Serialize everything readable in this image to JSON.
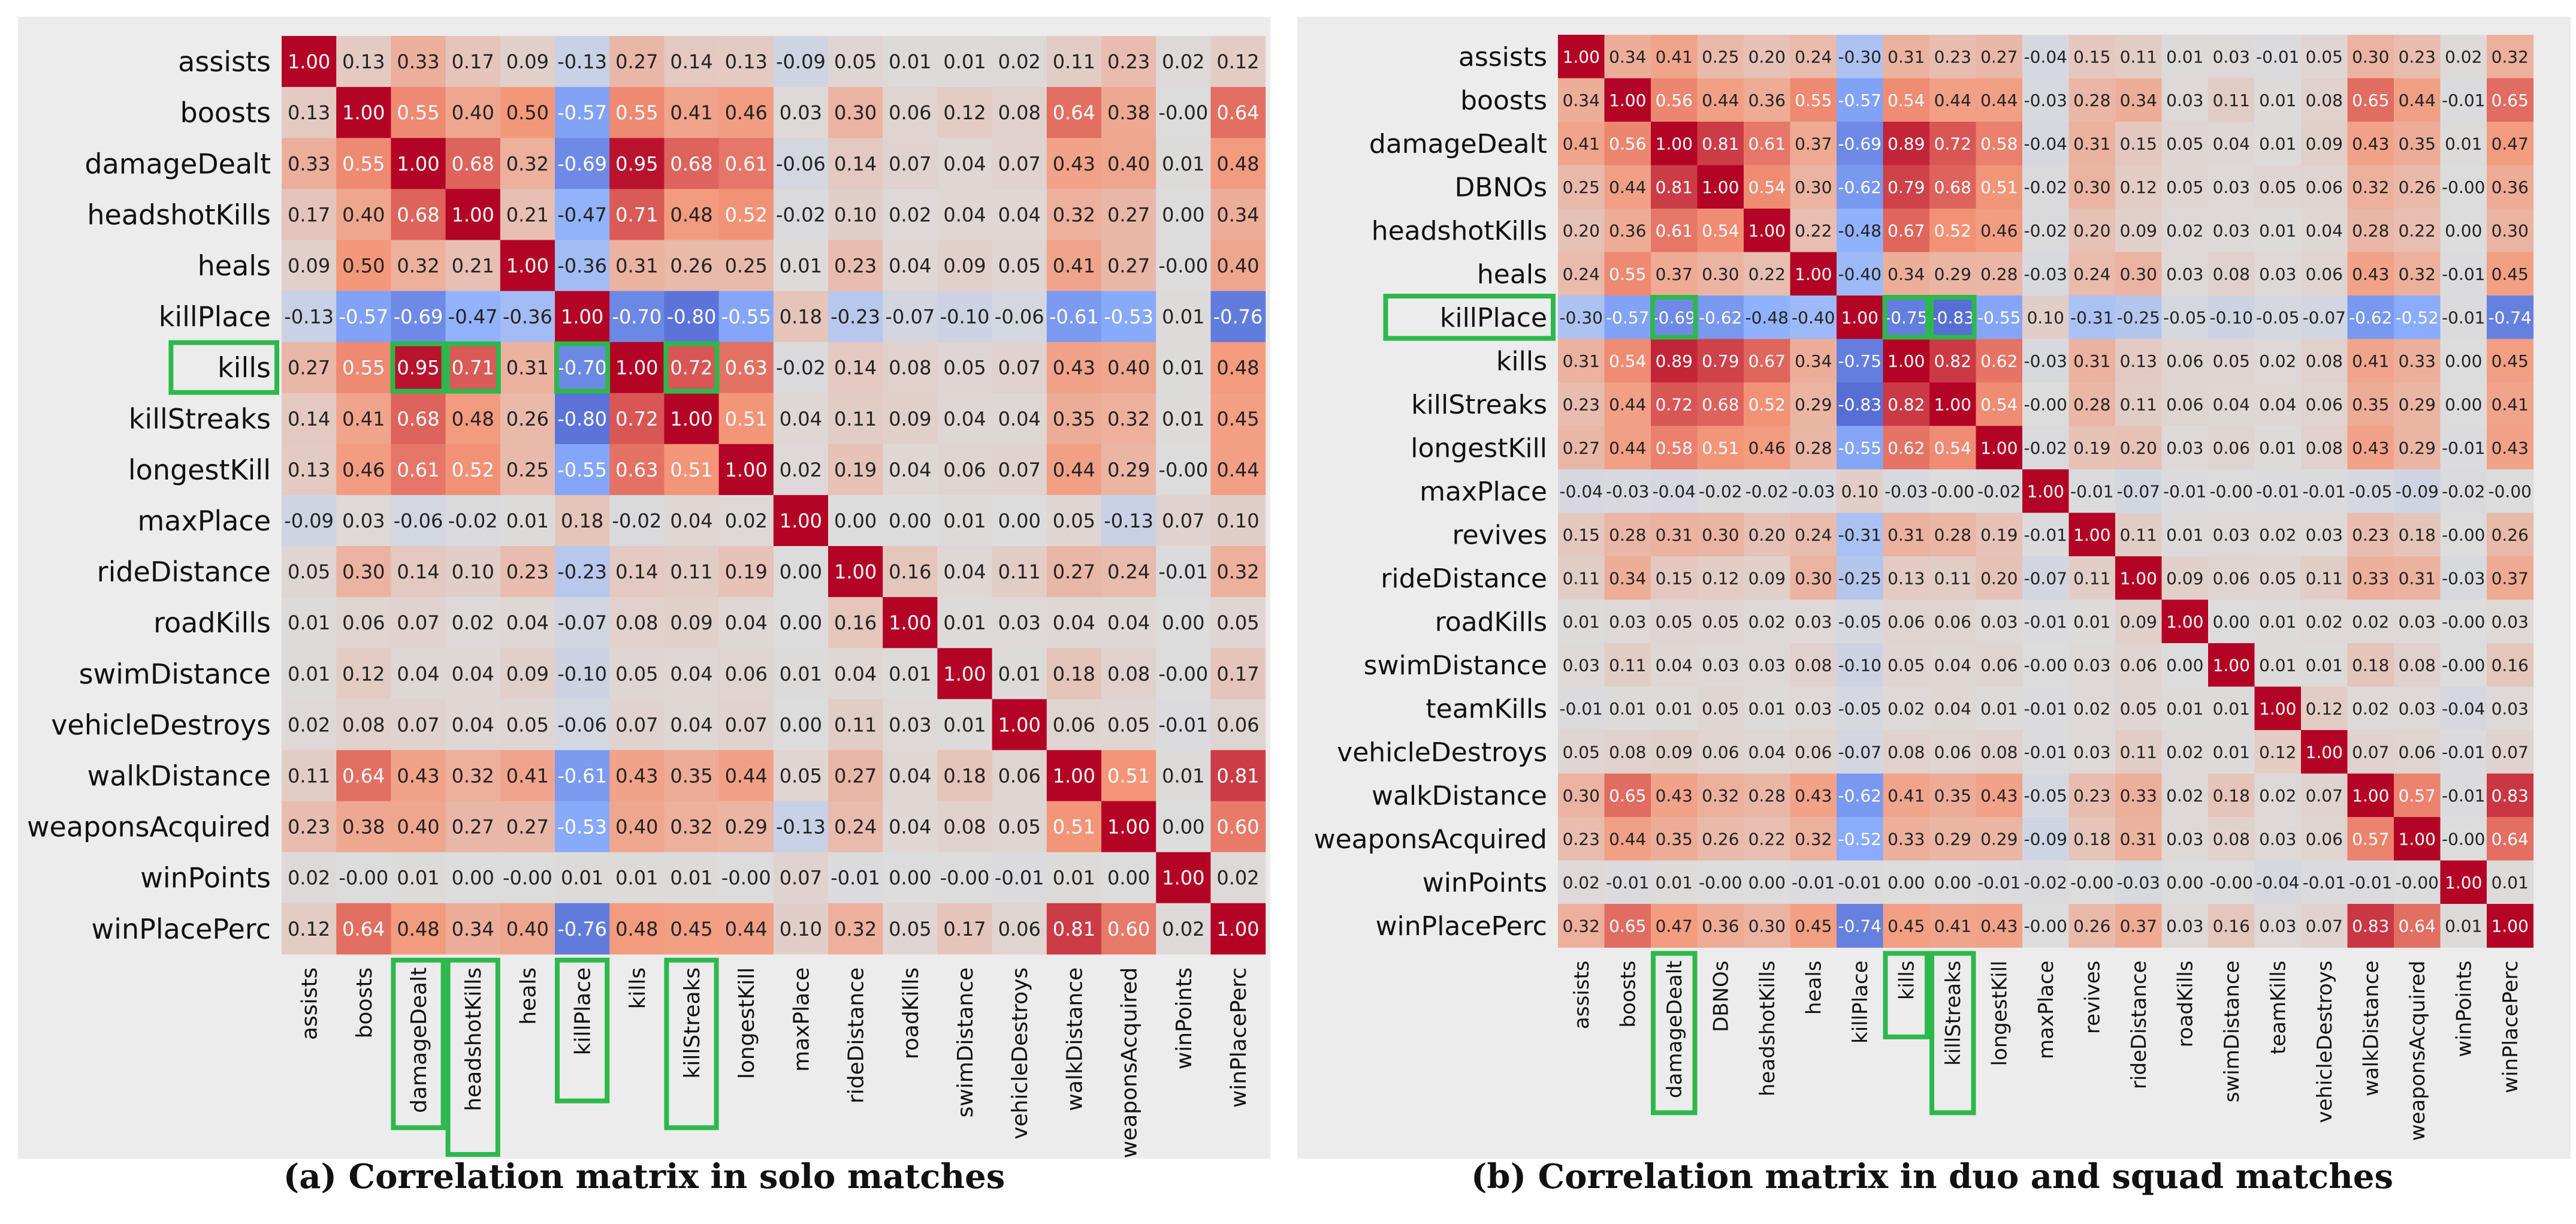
{
  "highlight_color": "#2db84c",
  "colormap": "coolwarm",
  "figure": {
    "caption_a": "(a) Correlation matrix in solo matches",
    "caption_b": "(b) Correlation matrix in duo and squad matches"
  },
  "chart_data": [
    {
      "type": "heatmap",
      "title": "",
      "caption": "(a) Correlation matrix in solo matches",
      "value_range": [
        -1,
        1
      ],
      "rows": [
        "assists",
        "boosts",
        "damageDealt",
        "headshotKills",
        "heals",
        "killPlace",
        "kills",
        "killStreaks",
        "longestKill",
        "maxPlace",
        "rideDistance",
        "roadKills",
        "swimDistance",
        "vehicleDestroys",
        "walkDistance",
        "weaponsAcquired",
        "winPoints",
        "winPlacePerc"
      ],
      "columns": [
        "assists",
        "boosts",
        "damageDealt",
        "headshotKills",
        "heals",
        "killPlace",
        "kills",
        "killStreaks",
        "longestKill",
        "maxPlace",
        "rideDistance",
        "roadKills",
        "swimDistance",
        "vehicleDestroys",
        "walkDistance",
        "weaponsAcquired",
        "winPoints",
        "winPlacePerc"
      ],
      "values": [
        [
          "1.00",
          "0.13",
          "0.33",
          "0.17",
          "0.09",
          "-0.13",
          "0.27",
          "0.14",
          "0.13",
          "-0.09",
          "0.05",
          "0.01",
          "0.01",
          "0.02",
          "0.11",
          "0.23",
          "0.02",
          "0.12"
        ],
        [
          "0.13",
          "1.00",
          "0.55",
          "0.40",
          "0.50",
          "-0.57",
          "0.55",
          "0.41",
          "0.46",
          "0.03",
          "0.30",
          "0.06",
          "0.12",
          "0.08",
          "0.64",
          "0.38",
          "-0.00",
          "0.64"
        ],
        [
          "0.33",
          "0.55",
          "1.00",
          "0.68",
          "0.32",
          "-0.69",
          "0.95",
          "0.68",
          "0.61",
          "-0.06",
          "0.14",
          "0.07",
          "0.04",
          "0.07",
          "0.43",
          "0.40",
          "0.01",
          "0.48"
        ],
        [
          "0.17",
          "0.40",
          "0.68",
          "1.00",
          "0.21",
          "-0.47",
          "0.71",
          "0.48",
          "0.52",
          "-0.02",
          "0.10",
          "0.02",
          "0.04",
          "0.04",
          "0.32",
          "0.27",
          "0.00",
          "0.34"
        ],
        [
          "0.09",
          "0.50",
          "0.32",
          "0.21",
          "1.00",
          "-0.36",
          "0.31",
          "0.26",
          "0.25",
          "0.01",
          "0.23",
          "0.04",
          "0.09",
          "0.05",
          "0.41",
          "0.27",
          "-0.00",
          "0.40"
        ],
        [
          "-0.13",
          "-0.57",
          "-0.69",
          "-0.47",
          "-0.36",
          "1.00",
          "-0.70",
          "-0.80",
          "-0.55",
          "0.18",
          "-0.23",
          "-0.07",
          "-0.10",
          "-0.06",
          "-0.61",
          "-0.53",
          "0.01",
          "-0.76"
        ],
        [
          "0.27",
          "0.55",
          "0.95",
          "0.71",
          "0.31",
          "-0.70",
          "1.00",
          "0.72",
          "0.63",
          "-0.02",
          "0.14",
          "0.08",
          "0.05",
          "0.07",
          "0.43",
          "0.40",
          "0.01",
          "0.48"
        ],
        [
          "0.14",
          "0.41",
          "0.68",
          "0.48",
          "0.26",
          "-0.80",
          "0.72",
          "1.00",
          "0.51",
          "0.04",
          "0.11",
          "0.09",
          "0.04",
          "0.04",
          "0.35",
          "0.32",
          "0.01",
          "0.45"
        ],
        [
          "0.13",
          "0.46",
          "0.61",
          "0.52",
          "0.25",
          "-0.55",
          "0.63",
          "0.51",
          "1.00",
          "0.02",
          "0.19",
          "0.04",
          "0.06",
          "0.07",
          "0.44",
          "0.29",
          "-0.00",
          "0.44"
        ],
        [
          "-0.09",
          "0.03",
          "-0.06",
          "-0.02",
          "0.01",
          "0.18",
          "-0.02",
          "0.04",
          "0.02",
          "1.00",
          "0.00",
          "0.00",
          "0.01",
          "0.00",
          "0.05",
          "-0.13",
          "0.07",
          "0.10"
        ],
        [
          "0.05",
          "0.30",
          "0.14",
          "0.10",
          "0.23",
          "-0.23",
          "0.14",
          "0.11",
          "0.19",
          "0.00",
          "1.00",
          "0.16",
          "0.04",
          "0.11",
          "0.27",
          "0.24",
          "-0.01",
          "0.32"
        ],
        [
          "0.01",
          "0.06",
          "0.07",
          "0.02",
          "0.04",
          "-0.07",
          "0.08",
          "0.09",
          "0.04",
          "0.00",
          "0.16",
          "1.00",
          "0.01",
          "0.03",
          "0.04",
          "0.04",
          "0.00",
          "0.05"
        ],
        [
          "0.01",
          "0.12",
          "0.04",
          "0.04",
          "0.09",
          "-0.10",
          "0.05",
          "0.04",
          "0.06",
          "0.01",
          "0.04",
          "0.01",
          "1.00",
          "0.01",
          "0.18",
          "0.08",
          "-0.00",
          "0.17"
        ],
        [
          "0.02",
          "0.08",
          "0.07",
          "0.04",
          "0.05",
          "-0.06",
          "0.07",
          "0.04",
          "0.07",
          "0.00",
          "0.11",
          "0.03",
          "0.01",
          "1.00",
          "0.06",
          "0.05",
          "-0.01",
          "0.06"
        ],
        [
          "0.11",
          "0.64",
          "0.43",
          "0.32",
          "0.41",
          "-0.61",
          "0.43",
          "0.35",
          "0.44",
          "0.05",
          "0.27",
          "0.04",
          "0.18",
          "0.06",
          "1.00",
          "0.51",
          "0.01",
          "0.81"
        ],
        [
          "0.23",
          "0.38",
          "0.40",
          "0.27",
          "0.27",
          "-0.53",
          "0.40",
          "0.32",
          "0.29",
          "-0.13",
          "0.24",
          "0.04",
          "0.08",
          "0.05",
          "0.51",
          "1.00",
          "0.00",
          "0.60"
        ],
        [
          "0.02",
          "-0.00",
          "0.01",
          "0.00",
          "-0.00",
          "0.01",
          "0.01",
          "0.01",
          "-0.00",
          "0.07",
          "-0.01",
          "0.00",
          "-0.00",
          "-0.01",
          "0.01",
          "0.00",
          "1.00",
          "0.02"
        ],
        [
          "0.12",
          "0.64",
          "0.48",
          "0.34",
          "0.40",
          "-0.76",
          "0.48",
          "0.45",
          "0.44",
          "0.10",
          "0.32",
          "0.05",
          "0.17",
          "0.06",
          "0.81",
          "0.60",
          "0.02",
          "1.00"
        ]
      ],
      "highlighted_rows": [
        "kills"
      ],
      "highlighted_columns": [
        "damageDealt",
        "headshotKills",
        "killPlace",
        "killStreaks"
      ],
      "highlighted_cells": [
        [
          "kills",
          "damageDealt"
        ],
        [
          "kills",
          "headshotKills"
        ],
        [
          "kills",
          "killPlace"
        ],
        [
          "kills",
          "killStreaks"
        ]
      ]
    },
    {
      "type": "heatmap",
      "title": "",
      "caption": "(b) Correlation matrix in duo and squad matches",
      "value_range": [
        -1,
        1
      ],
      "rows": [
        "assists",
        "boosts",
        "damageDealt",
        "DBNOs",
        "headshotKills",
        "heals",
        "killPlace",
        "kills",
        "killStreaks",
        "longestKill",
        "maxPlace",
        "revives",
        "rideDistance",
        "roadKills",
        "swimDistance",
        "teamKills",
        "vehicleDestroys",
        "walkDistance",
        "weaponsAcquired",
        "winPoints",
        "winPlacePerc"
      ],
      "columns": [
        "assists",
        "boosts",
        "damageDealt",
        "DBNOs",
        "headshotKills",
        "heals",
        "killPlace",
        "kills",
        "killStreaks",
        "longestKill",
        "maxPlace",
        "revives",
        "rideDistance",
        "roadKills",
        "swimDistance",
        "teamKills",
        "vehicleDestroys",
        "walkDistance",
        "weaponsAcquired",
        "winPoints",
        "winPlacePerc"
      ],
      "values": [
        [
          "1.00",
          "0.34",
          "0.41",
          "0.25",
          "0.20",
          "0.24",
          "-0.30",
          "0.31",
          "0.23",
          "0.27",
          "-0.04",
          "0.15",
          "0.11",
          "0.01",
          "0.03",
          "-0.01",
          "0.05",
          "0.30",
          "0.23",
          "0.02",
          "0.32"
        ],
        [
          "0.34",
          "1.00",
          "0.56",
          "0.44",
          "0.36",
          "0.55",
          "-0.57",
          "0.54",
          "0.44",
          "0.44",
          "-0.03",
          "0.28",
          "0.34",
          "0.03",
          "0.11",
          "0.01",
          "0.08",
          "0.65",
          "0.44",
          "-0.01",
          "0.65"
        ],
        [
          "0.41",
          "0.56",
          "1.00",
          "0.81",
          "0.61",
          "0.37",
          "-0.69",
          "0.89",
          "0.72",
          "0.58",
          "-0.04",
          "0.31",
          "0.15",
          "0.05",
          "0.04",
          "0.01",
          "0.09",
          "0.43",
          "0.35",
          "0.01",
          "0.47"
        ],
        [
          "0.25",
          "0.44",
          "0.81",
          "1.00",
          "0.54",
          "0.30",
          "-0.62",
          "0.79",
          "0.68",
          "0.51",
          "-0.02",
          "0.30",
          "0.12",
          "0.05",
          "0.03",
          "0.05",
          "0.06",
          "0.32",
          "0.26",
          "-0.00",
          "0.36"
        ],
        [
          "0.20",
          "0.36",
          "0.61",
          "0.54",
          "1.00",
          "0.22",
          "-0.48",
          "0.67",
          "0.52",
          "0.46",
          "-0.02",
          "0.20",
          "0.09",
          "0.02",
          "0.03",
          "0.01",
          "0.04",
          "0.28",
          "0.22",
          "0.00",
          "0.30"
        ],
        [
          "0.24",
          "0.55",
          "0.37",
          "0.30",
          "0.22",
          "1.00",
          "-0.40",
          "0.34",
          "0.29",
          "0.28",
          "-0.03",
          "0.24",
          "0.30",
          "0.03",
          "0.08",
          "0.03",
          "0.06",
          "0.43",
          "0.32",
          "-0.01",
          "0.45"
        ],
        [
          "-0.30",
          "-0.57",
          "-0.69",
          "-0.62",
          "-0.48",
          "-0.40",
          "1.00",
          "-0.75",
          "-0.83",
          "-0.55",
          "0.10",
          "-0.31",
          "-0.25",
          "-0.05",
          "-0.10",
          "-0.05",
          "-0.07",
          "-0.62",
          "-0.52",
          "-0.01",
          "-0.74"
        ],
        [
          "0.31",
          "0.54",
          "0.89",
          "0.79",
          "0.67",
          "0.34",
          "-0.75",
          "1.00",
          "0.82",
          "0.62",
          "-0.03",
          "0.31",
          "0.13",
          "0.06",
          "0.05",
          "0.02",
          "0.08",
          "0.41",
          "0.33",
          "0.00",
          "0.45"
        ],
        [
          "0.23",
          "0.44",
          "0.72",
          "0.68",
          "0.52",
          "0.29",
          "-0.83",
          "0.82",
          "1.00",
          "0.54",
          "-0.00",
          "0.28",
          "0.11",
          "0.06",
          "0.04",
          "0.04",
          "0.06",
          "0.35",
          "0.29",
          "0.00",
          "0.41"
        ],
        [
          "0.27",
          "0.44",
          "0.58",
          "0.51",
          "0.46",
          "0.28",
          "-0.55",
          "0.62",
          "0.54",
          "1.00",
          "-0.02",
          "0.19",
          "0.20",
          "0.03",
          "0.06",
          "0.01",
          "0.08",
          "0.43",
          "0.29",
          "-0.01",
          "0.43"
        ],
        [
          "-0.04",
          "-0.03",
          "-0.04",
          "-0.02",
          "-0.02",
          "-0.03",
          "0.10",
          "-0.03",
          "-0.00",
          "-0.02",
          "1.00",
          "-0.01",
          "-0.07",
          "-0.01",
          "-0.00",
          "-0.01",
          "-0.01",
          "-0.05",
          "-0.09",
          "-0.02",
          "-0.00"
        ],
        [
          "0.15",
          "0.28",
          "0.31",
          "0.30",
          "0.20",
          "0.24",
          "-0.31",
          "0.31",
          "0.28",
          "0.19",
          "-0.01",
          "1.00",
          "0.11",
          "0.01",
          "0.03",
          "0.02",
          "0.03",
          "0.23",
          "0.18",
          "-0.00",
          "0.26"
        ],
        [
          "0.11",
          "0.34",
          "0.15",
          "0.12",
          "0.09",
          "0.30",
          "-0.25",
          "0.13",
          "0.11",
          "0.20",
          "-0.07",
          "0.11",
          "1.00",
          "0.09",
          "0.06",
          "0.05",
          "0.11",
          "0.33",
          "0.31",
          "-0.03",
          "0.37"
        ],
        [
          "0.01",
          "0.03",
          "0.05",
          "0.05",
          "0.02",
          "0.03",
          "-0.05",
          "0.06",
          "0.06",
          "0.03",
          "-0.01",
          "0.01",
          "0.09",
          "1.00",
          "0.00",
          "0.01",
          "0.02",
          "0.02",
          "0.03",
          "-0.00",
          "0.03"
        ],
        [
          "0.03",
          "0.11",
          "0.04",
          "0.03",
          "0.03",
          "0.08",
          "-0.10",
          "0.05",
          "0.04",
          "0.06",
          "-0.00",
          "0.03",
          "0.06",
          "0.00",
          "1.00",
          "0.01",
          "0.01",
          "0.18",
          "0.08",
          "-0.00",
          "0.16"
        ],
        [
          "-0.01",
          "0.01",
          "0.01",
          "0.05",
          "0.01",
          "0.03",
          "-0.05",
          "0.02",
          "0.04",
          "0.01",
          "-0.01",
          "0.02",
          "0.05",
          "0.01",
          "0.01",
          "1.00",
          "0.12",
          "0.02",
          "0.03",
          "-0.04",
          "0.03"
        ],
        [
          "0.05",
          "0.08",
          "0.09",
          "0.06",
          "0.04",
          "0.06",
          "-0.07",
          "0.08",
          "0.06",
          "0.08",
          "-0.01",
          "0.03",
          "0.11",
          "0.02",
          "0.01",
          "0.12",
          "1.00",
          "0.07",
          "0.06",
          "-0.01",
          "0.07"
        ],
        [
          "0.30",
          "0.65",
          "0.43",
          "0.32",
          "0.28",
          "0.43",
          "-0.62",
          "0.41",
          "0.35",
          "0.43",
          "-0.05",
          "0.23",
          "0.33",
          "0.02",
          "0.18",
          "0.02",
          "0.07",
          "1.00",
          "0.57",
          "-0.01",
          "0.83"
        ],
        [
          "0.23",
          "0.44",
          "0.35",
          "0.26",
          "0.22",
          "0.32",
          "-0.52",
          "0.33",
          "0.29",
          "0.29",
          "-0.09",
          "0.18",
          "0.31",
          "0.03",
          "0.08",
          "0.03",
          "0.06",
          "0.57",
          "1.00",
          "-0.00",
          "0.64"
        ],
        [
          "0.02",
          "-0.01",
          "0.01",
          "-0.00",
          "0.00",
          "-0.01",
          "-0.01",
          "0.00",
          "0.00",
          "-0.01",
          "-0.02",
          "-0.00",
          "-0.03",
          "0.00",
          "-0.00",
          "-0.04",
          "-0.01",
          "-0.01",
          "-0.00",
          "1.00",
          "0.01"
        ],
        [
          "0.32",
          "0.65",
          "0.47",
          "0.36",
          "0.30",
          "0.45",
          "-0.74",
          "0.45",
          "0.41",
          "0.43",
          "-0.00",
          "0.26",
          "0.37",
          "0.03",
          "0.16",
          "0.03",
          "0.07",
          "0.83",
          "0.64",
          "0.01",
          "1.00"
        ]
      ],
      "highlighted_rows": [
        "killPlace"
      ],
      "highlighted_columns": [
        "damageDealt",
        "kills",
        "killStreaks"
      ],
      "highlighted_cells": [
        [
          "killPlace",
          "damageDealt"
        ],
        [
          "killPlace",
          "kills"
        ],
        [
          "killPlace",
          "killStreaks"
        ]
      ]
    }
  ]
}
